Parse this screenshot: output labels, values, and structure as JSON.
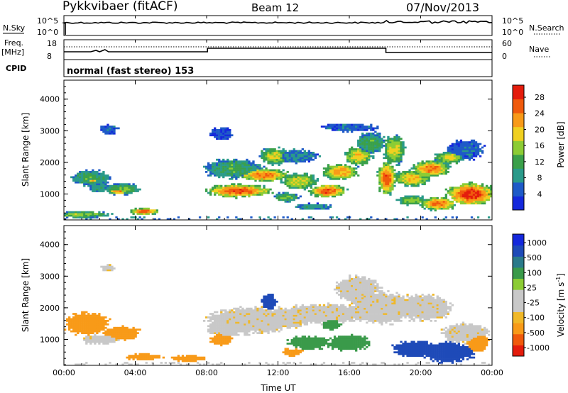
{
  "header": {
    "station": "Pykkvibaer (fitACF)",
    "beam": "Beam 12",
    "date": "07/Nov/2013"
  },
  "strips": {
    "nsky_label": "N.Sky",
    "nsky_ticks": [
      "10^5",
      "10^0"
    ],
    "nsearch_label": "N.Search",
    "nsearch_ticks": [
      "10^5",
      "10^0"
    ],
    "freq_label": "Freq.",
    "freq_unit": "[MHz]",
    "freq_ticks": [
      "18",
      "8"
    ],
    "nave_label": "Nave",
    "nave_ticks": [
      "60",
      "0"
    ],
    "cpid_label": "CPID",
    "cpid_text": "normal (fast stereo) 153"
  },
  "colors": {
    "power": [
      "#1428dc",
      "#1e5ac8",
      "#2a9a8a",
      "#3aa04a",
      "#8ccc34",
      "#f0d020",
      "#f89a18",
      "#f05a0c",
      "#e41c0c"
    ],
    "velocity": [
      "#e41c0c",
      "#f05a0c",
      "#f89a18",
      "#f0b828",
      "#c8c8c8",
      "#c8c8c8",
      "#8ccc34",
      "#3a9a4a",
      "#2a7a8a",
      "#1e4ab8",
      "#1428dc"
    ]
  },
  "chart_data": [
    {
      "type": "heatmap",
      "panel": "power",
      "ylabel": "Slant Range [km]",
      "xlabel": "",
      "ylim": [
        180,
        4600
      ],
      "y_ticks": [
        "1000",
        "2000",
        "3000",
        "4000"
      ],
      "x_ticks": [
        "00:00",
        "04:00",
        "08:00",
        "12:00",
        "16:00",
        "20:00",
        "00:00"
      ],
      "colorbar_label": "Power [dB]",
      "colorbar_ticks": [
        "4",
        "8",
        "12",
        "16",
        "20",
        "24",
        "28"
      ],
      "colorbar_range": [
        0,
        31
      ],
      "blobs": [
        {
          "t": 1.5,
          "r": 1500,
          "dt": 1.1,
          "dr": 250,
          "v": 12
        },
        {
          "t": 1.6,
          "r": 1450,
          "dt": 0.6,
          "dr": 150,
          "v": 22
        },
        {
          "t": 3.3,
          "r": 1150,
          "dt": 1.0,
          "dr": 180,
          "v": 14
        },
        {
          "t": 3.1,
          "r": 1100,
          "dt": 0.6,
          "dr": 120,
          "v": 24
        },
        {
          "t": 2.5,
          "r": 3050,
          "dt": 0.5,
          "dr": 150,
          "v": 6
        },
        {
          "t": 2.0,
          "r": 1200,
          "dt": 0.6,
          "dr": 150,
          "v": 10
        },
        {
          "t": 4.5,
          "r": 450,
          "dt": 0.8,
          "dr": 100,
          "v": 26
        },
        {
          "t": 1.0,
          "r": 350,
          "dt": 1.5,
          "dr": 100,
          "v": 16
        },
        {
          "t": 9.8,
          "r": 1100,
          "dt": 1.8,
          "dr": 200,
          "v": 26
        },
        {
          "t": 9.5,
          "r": 1800,
          "dt": 1.6,
          "dr": 300,
          "v": 12
        },
        {
          "t": 11.2,
          "r": 1600,
          "dt": 1.4,
          "dr": 200,
          "v": 24
        },
        {
          "t": 11.8,
          "r": 2200,
          "dt": 0.8,
          "dr": 250,
          "v": 18
        },
        {
          "t": 13.2,
          "r": 1400,
          "dt": 1.0,
          "dr": 250,
          "v": 18
        },
        {
          "t": 14.8,
          "r": 1100,
          "dt": 1.0,
          "dr": 200,
          "v": 26
        },
        {
          "t": 15.5,
          "r": 1700,
          "dt": 1.0,
          "dr": 250,
          "v": 22
        },
        {
          "t": 14.0,
          "r": 600,
          "dt": 1.0,
          "dr": 100,
          "v": 10
        },
        {
          "t": 16.5,
          "r": 2200,
          "dt": 0.8,
          "dr": 300,
          "v": 20
        },
        {
          "t": 17.2,
          "r": 2600,
          "dt": 0.8,
          "dr": 350,
          "v": 12
        },
        {
          "t": 18.1,
          "r": 1500,
          "dt": 0.5,
          "dr": 500,
          "v": 26
        },
        {
          "t": 18.5,
          "r": 2400,
          "dt": 0.6,
          "dr": 450,
          "v": 18
        },
        {
          "t": 19.5,
          "r": 1500,
          "dt": 1.0,
          "dr": 250,
          "v": 20
        },
        {
          "t": 20.6,
          "r": 1800,
          "dt": 1.0,
          "dr": 250,
          "v": 24
        },
        {
          "t": 21.6,
          "r": 2150,
          "dt": 0.8,
          "dr": 200,
          "v": 18
        },
        {
          "t": 22.8,
          "r": 1000,
          "dt": 1.3,
          "dr": 350,
          "v": 28
        },
        {
          "t": 21.0,
          "r": 700,
          "dt": 1.0,
          "dr": 200,
          "v": 24
        },
        {
          "t": 19.5,
          "r": 800,
          "dt": 0.8,
          "dr": 150,
          "v": 16
        },
        {
          "t": 22.5,
          "r": 2400,
          "dt": 1.0,
          "dr": 300,
          "v": 6
        },
        {
          "t": 16.0,
          "r": 3100,
          "dt": 1.5,
          "dr": 120,
          "v": 6
        },
        {
          "t": 13.0,
          "r": 2200,
          "dt": 1.2,
          "dr": 200,
          "v": 8
        },
        {
          "t": 8.8,
          "r": 2900,
          "dt": 0.6,
          "dr": 200,
          "v": 5
        },
        {
          "t": 12.5,
          "r": 900,
          "dt": 0.7,
          "dr": 150,
          "v": 14
        }
      ]
    },
    {
      "type": "heatmap",
      "panel": "velocity",
      "ylabel": "Slant Range [km]",
      "xlabel": "Time UT",
      "ylim": [
        180,
        4600
      ],
      "y_ticks": [
        "1000",
        "2000",
        "3000",
        "4000"
      ],
      "x_ticks": [
        "00:00",
        "04:00",
        "08:00",
        "12:00",
        "16:00",
        "20:00",
        "00:00"
      ],
      "colorbar_label": "Velocity [m s",
      "colorbar_label_sup": "-1",
      "colorbar_label_end": "]",
      "colorbar_ticks": [
        "1000",
        "500",
        "100",
        "25",
        "-25",
        "-100",
        "-500",
        "-1000"
      ],
      "blobs": [
        {
          "t": 1.3,
          "r": 1500,
          "dt": 1.2,
          "dr": 350,
          "v": -200
        },
        {
          "t": 3.3,
          "r": 1200,
          "dt": 1.0,
          "dr": 200,
          "v": -200
        },
        {
          "t": 2.0,
          "r": 1000,
          "dt": 1.0,
          "dr": 150,
          "v": 0
        },
        {
          "t": 4.5,
          "r": 450,
          "dt": 1.0,
          "dr": 100,
          "v": -200
        },
        {
          "t": 2.5,
          "r": 3250,
          "dt": 0.4,
          "dr": 100,
          "v": 0
        },
        {
          "t": 10.5,
          "r": 1600,
          "dt": 2.5,
          "dr": 400,
          "v": 0
        },
        {
          "t": 12.5,
          "r": 1700,
          "dt": 1.5,
          "dr": 300,
          "v": 0
        },
        {
          "t": 14.5,
          "r": 1800,
          "dt": 2.5,
          "dr": 300,
          "v": 0
        },
        {
          "t": 17.8,
          "r": 2000,
          "dt": 1.8,
          "dr": 500,
          "v": 0
        },
        {
          "t": 20.2,
          "r": 2000,
          "dt": 1.5,
          "dr": 400,
          "v": 0
        },
        {
          "t": 16.5,
          "r": 2600,
          "dt": 1.2,
          "dr": 400,
          "v": 0
        },
        {
          "t": 8.8,
          "r": 1000,
          "dt": 0.6,
          "dr": 200,
          "v": -200
        },
        {
          "t": 9.0,
          "r": 1300,
          "dt": 1.0,
          "dr": 200,
          "v": 0
        },
        {
          "t": 11.5,
          "r": 2200,
          "dt": 0.4,
          "dr": 250,
          "v": 700
        },
        {
          "t": 16.0,
          "r": 900,
          "dt": 1.2,
          "dr": 250,
          "v": 200
        },
        {
          "t": 13.8,
          "r": 900,
          "dt": 1.2,
          "dr": 200,
          "v": 150
        },
        {
          "t": 12.8,
          "r": 600,
          "dt": 0.6,
          "dr": 120,
          "v": -200
        },
        {
          "t": 19.7,
          "r": 700,
          "dt": 1.2,
          "dr": 250,
          "v": 700
        },
        {
          "t": 21.5,
          "r": 600,
          "dt": 1.5,
          "dr": 300,
          "v": 600
        },
        {
          "t": 22.5,
          "r": 1200,
          "dt": 1.3,
          "dr": 300,
          "v": 0
        },
        {
          "t": 23.2,
          "r": 900,
          "dt": 0.6,
          "dr": 300,
          "v": -200
        },
        {
          "t": 15.0,
          "r": 1500,
          "dt": 0.5,
          "dr": 200,
          "v": 200
        },
        {
          "t": 7.0,
          "r": 400,
          "dt": 1.0,
          "dr": 100,
          "v": -200
        }
      ]
    }
  ]
}
